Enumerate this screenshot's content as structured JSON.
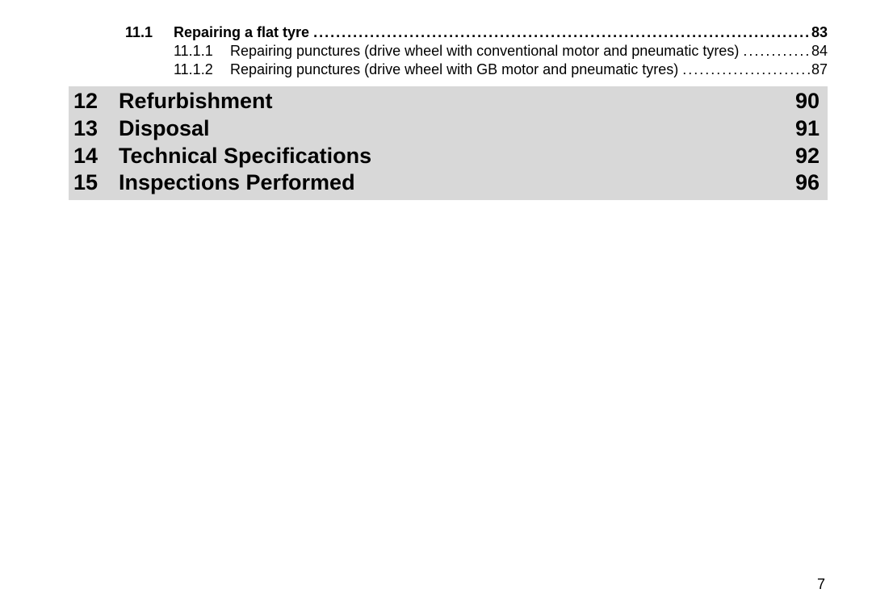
{
  "toc": {
    "sub1": {
      "num": "11.1",
      "title": "Repairing a flat tyre",
      "page": "83"
    },
    "sub2a": {
      "num": "11.1.1",
      "title": "Repairing punctures (drive wheel with conventional motor and pneumatic tyres)",
      "page": "84"
    },
    "sub2b": {
      "num": "11.1.2",
      "title": "Repairing punctures (drive wheel with GB motor and pneumatic tyres)",
      "page": "87"
    },
    "chapters": [
      {
        "num": "12",
        "title": "Refurbishment",
        "page": "90"
      },
      {
        "num": "13",
        "title": "Disposal",
        "page": "91"
      },
      {
        "num": "14",
        "title": "Technical Specifications",
        "page": "92"
      },
      {
        "num": "15",
        "title": "Inspections Performed",
        "page": "96"
      }
    ]
  },
  "leader": "...................................................................................................................................................................................................",
  "footer": {
    "page": "7"
  },
  "colors": {
    "chapter_bg": "#d8d8d8",
    "text": "#000000",
    "page_bg": "#ffffff"
  },
  "fonts": {
    "sub_size_pt": 14,
    "chapter_size_pt": 20
  }
}
